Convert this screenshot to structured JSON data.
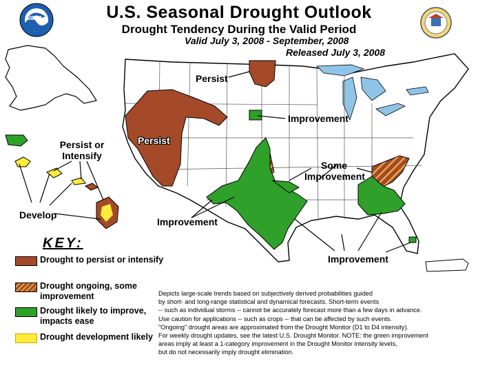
{
  "title": "U.S. Seasonal Drought Outlook",
  "subtitle": "Drought Tendency During the Valid Period",
  "valid_period": "Valid July 3, 2008 - September, 2008",
  "released": "Released July 3, 2008",
  "logos": {
    "left": "NOAA",
    "left_icon": "noaa-logo",
    "right_icon": "commerce-seal"
  },
  "map_labels": {
    "persist_north": "Persist",
    "persist_west": "Persist",
    "improvement_plains": "Improvement",
    "some_improvement": "Some Improvement",
    "improvement_sw": "Improvement",
    "improvement_se": "Improvement",
    "persist_or_intensify": "Persist or Intensify",
    "develop": "Develop"
  },
  "key": {
    "title": "KEY:",
    "items": [
      {
        "label": "Drought to persist or intensify",
        "color": "#a44a28"
      },
      {
        "label": "Drought ongoing, some improvement",
        "color": "#a44a28"
      },
      {
        "label": "Drought likely to improve, impacts ease",
        "color": "#2fa02a"
      },
      {
        "label": "Drought development likely",
        "color": "#ffec3a"
      }
    ]
  },
  "disclaimer": [
    "Depicts large-scale trends based on subjectively derived probabilities guided",
    "by short- and long-range statistical and dynamical forecasts. Short-term events",
    "-- such as individual storms -- cannot be accurately forecast more than a few days in advance.",
    "Use caution for applications -- such as crops -- that can be affected by such events.",
    "\"Ongoing\" drought areas are approximated from the Drought Monitor (D1 to D4 intensity).",
    "For weekly drought updates, see the latest U.S. Drought Monitor. NOTE: the green improvement",
    "areas imply at least a 1-category improvement in the Drought Monitor intensity levels,",
    "but do not necessarily imply drought elimination."
  ]
}
